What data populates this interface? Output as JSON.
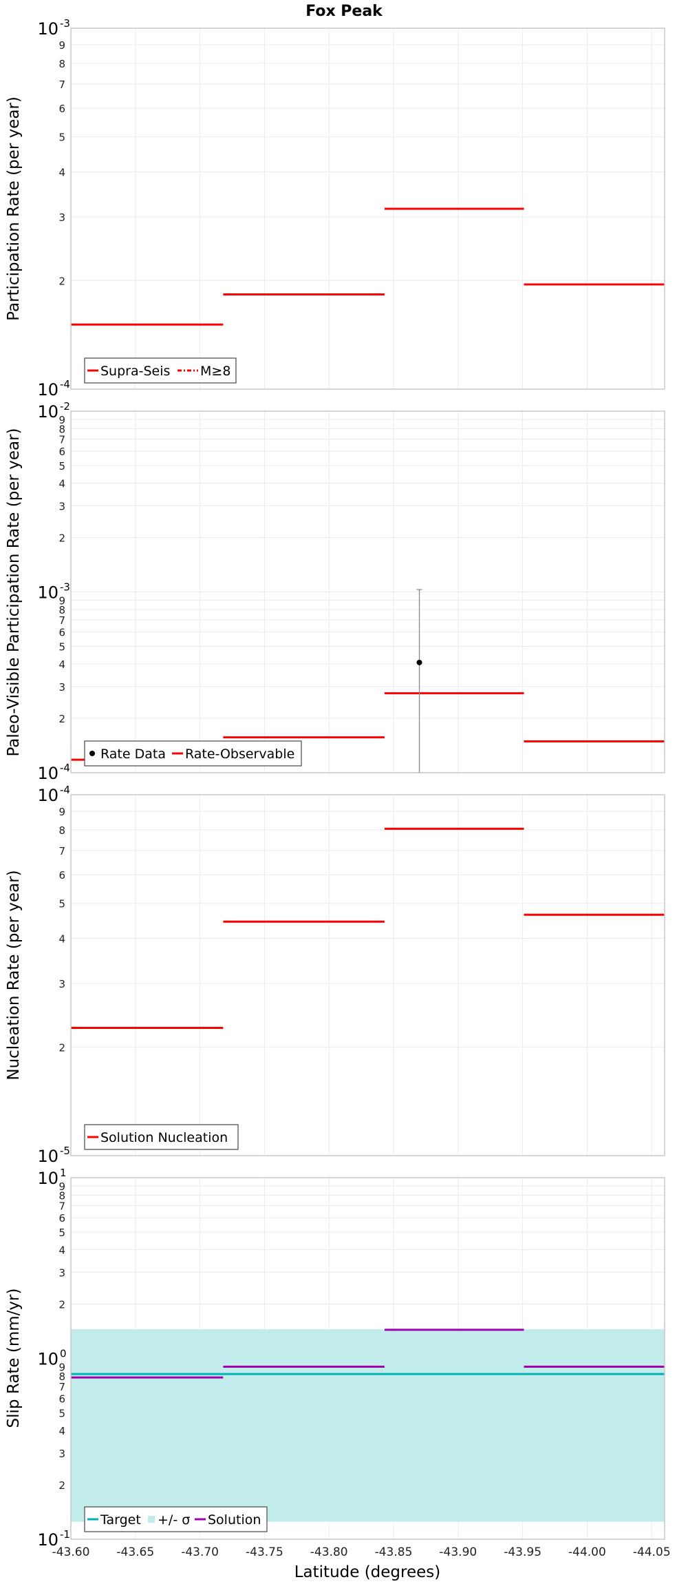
{
  "figure_title": "Fox Peak",
  "x_axis": {
    "label": "Latitude (degrees)",
    "lim": [
      -43.6,
      -44.06
    ],
    "ticks": [
      "-43.60",
      "-43.65",
      "-43.70",
      "-43.75",
      "-43.80",
      "-43.85",
      "-43.90",
      "-43.95",
      "-44.00",
      "-44.05"
    ]
  },
  "colors": {
    "red": "#ff0000",
    "cyan": "#00b3b3",
    "band": "#c2eceb",
    "magenta": "#a200b3",
    "black": "#000000",
    "grid": "#ebebeb",
    "frame": "#c8c8c8",
    "errorbar": "#888888"
  },
  "chart_data": [
    {
      "type": "line",
      "title": "Fox Peak",
      "ylabel": "Participation Rate (per year)",
      "yscale": "log",
      "ylim": [
        0.0001,
        0.001
      ],
      "grid": true,
      "legend_placement": "bottom-left",
      "legend": [
        "Supra-Seis",
        "M≥8"
      ],
      "series": [
        {
          "name": "Supra-Seis",
          "style": "solid",
          "segments": [
            {
              "x0": -43.6,
              "x1": -43.718,
              "y": 0.000151
            },
            {
              "x0": -43.718,
              "x1": -43.843,
              "y": 0.000183
            },
            {
              "x0": -43.843,
              "x1": -43.951,
              "y": 0.000316
            },
            {
              "x0": -43.951,
              "x1": -44.06,
              "y": 0.000195
            }
          ]
        }
      ]
    },
    {
      "type": "line",
      "ylabel": "Paleo-Visible Participation Rate (per year)",
      "yscale": "log",
      "ylim": [
        0.0001,
        0.01
      ],
      "grid": true,
      "legend_placement": "bottom-left",
      "legend": [
        "Rate Data",
        "Rate-Observable"
      ],
      "points": [
        {
          "name": "Rate Data",
          "x": -43.87,
          "y": 0.000407,
          "ylow": 0.0001,
          "yhigh": 0.00103
        }
      ],
      "series": [
        {
          "name": "Rate-Observable",
          "style": "solid",
          "segments": [
            {
              "x0": -43.6,
              "x1": -43.718,
              "y": 0.000118
            },
            {
              "x0": -43.718,
              "x1": -43.843,
              "y": 0.000157
            },
            {
              "x0": -43.843,
              "x1": -43.951,
              "y": 0.000275
            },
            {
              "x0": -43.951,
              "x1": -44.06,
              "y": 0.000149
            }
          ]
        }
      ]
    },
    {
      "type": "line",
      "ylabel": "Nucleation Rate (per year)",
      "yscale": "log",
      "ylim": [
        1e-05,
        0.0001
      ],
      "grid": true,
      "legend_placement": "bottom-left",
      "legend": [
        "Solution Nucleation"
      ],
      "series": [
        {
          "name": "Solution Nucleation",
          "style": "solid",
          "segments": [
            {
              "x0": -43.6,
              "x1": -43.718,
              "y": 2.26e-05
            },
            {
              "x0": -43.718,
              "x1": -43.843,
              "y": 4.45e-05
            },
            {
              "x0": -43.843,
              "x1": -43.951,
              "y": 8.05e-05
            },
            {
              "x0": -43.951,
              "x1": -44.06,
              "y": 4.65e-05
            }
          ]
        }
      ]
    },
    {
      "type": "line",
      "ylabel": "Slip Rate (mm/yr)",
      "yscale": "log",
      "ylim": [
        0.1,
        10
      ],
      "grid": true,
      "legend_placement": "bottom-left",
      "legend": [
        "Target",
        "+/- σ",
        "Solution"
      ],
      "band": {
        "name": "+/- σ",
        "low": 0.125,
        "high": 1.45
      },
      "series": [
        {
          "name": "Target",
          "style": "solid",
          "segments": [
            {
              "x0": -43.6,
              "x1": -44.06,
              "y": 0.82
            }
          ]
        },
        {
          "name": "Solution",
          "style": "solid",
          "segments": [
            {
              "x0": -43.6,
              "x1": -43.718,
              "y": 0.785
            },
            {
              "x0": -43.718,
              "x1": -43.843,
              "y": 0.9
            },
            {
              "x0": -43.843,
              "x1": -43.951,
              "y": 1.44
            },
            {
              "x0": -43.951,
              "x1": -44.06,
              "y": 0.9
            }
          ]
        }
      ]
    }
  ]
}
